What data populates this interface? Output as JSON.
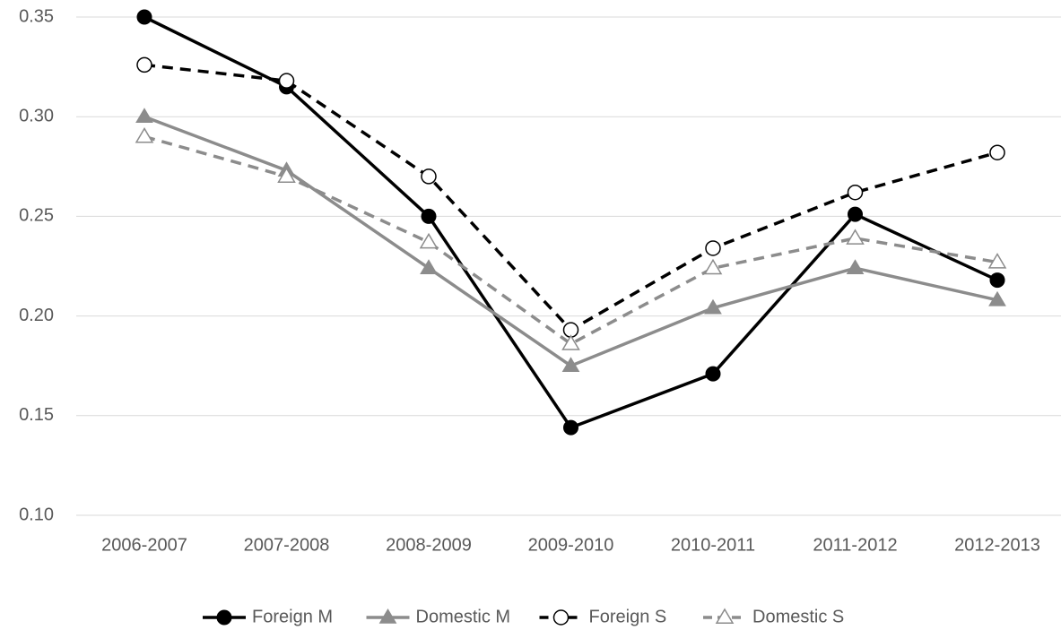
{
  "chart_data": {
    "type": "line",
    "categories": [
      "2006-2007",
      "2007-2008",
      "2008-2009",
      "2009-2010",
      "2010-2011",
      "2011-2012",
      "2012-2013"
    ],
    "series": [
      {
        "name": "Foreign M",
        "color": "#000000",
        "dashed": false,
        "marker": "circle",
        "filled": true,
        "values": [
          0.35,
          0.315,
          0.25,
          0.144,
          0.171,
          0.251,
          0.218
        ]
      },
      {
        "name": "Domestic M",
        "color": "#8c8c8c",
        "dashed": false,
        "marker": "triangle",
        "filled": true,
        "values": [
          0.3,
          0.273,
          0.224,
          0.175,
          0.204,
          0.224,
          0.208
        ]
      },
      {
        "name": "Foreign S",
        "color": "#000000",
        "dashed": true,
        "marker": "circle",
        "filled": false,
        "values": [
          0.326,
          0.318,
          0.27,
          0.193,
          0.234,
          0.262,
          0.282
        ]
      },
      {
        "name": "Domestic S",
        "color": "#8c8c8c",
        "dashed": true,
        "marker": "triangle",
        "filled": false,
        "values": [
          0.29,
          0.27,
          0.237,
          0.186,
          0.224,
          0.239,
          0.227
        ]
      }
    ],
    "ylim": [
      0.1,
      0.35
    ],
    "yticks": [
      {
        "value": 0.1,
        "label": "0.10"
      },
      0.15,
      {
        "value": 0.2,
        "label": "0.20"
      },
      0.25,
      {
        "value": 0.3,
        "label": "0.30"
      },
      0.35
    ],
    "grid": true,
    "legend": "bottom"
  }
}
